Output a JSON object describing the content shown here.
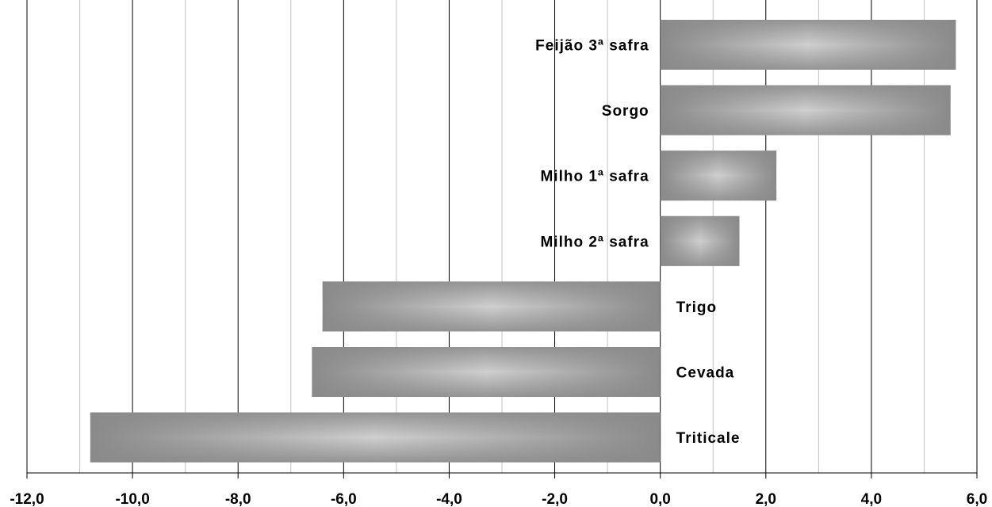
{
  "chart_data": {
    "type": "bar",
    "orientation": "horizontal",
    "categories": [
      "Feijão 3ª safra",
      "Sorgo",
      "Milho 1ª safra",
      "Milho 2ª safra",
      "Trigo",
      "Cevada",
      "Triticale"
    ],
    "values": [
      5.6,
      5.5,
      2.2,
      1.5,
      -6.4,
      -6.6,
      -10.8
    ],
    "xlim": [
      -12.0,
      6.0
    ],
    "xticks": [
      "-12,0",
      "-10,0",
      "-8,0",
      "-6,0",
      "-4,0",
      "-2,0",
      "0,0",
      "2,0",
      "4,0",
      "6,0"
    ],
    "xtick_values": [
      -12,
      -10,
      -8,
      -6,
      -4,
      -2,
      0,
      2,
      4,
      6
    ],
    "minor_grid_values": [
      -11,
      -9,
      -7,
      -5,
      -3,
      -1,
      1,
      3,
      5
    ],
    "title": "",
    "xlabel": "",
    "ylabel": "",
    "grid": true,
    "legend": "none"
  },
  "colors": {
    "bar_edge": "#8a8a8a",
    "bar_center": "#cfcfcf",
    "major_grid": "#000000",
    "minor_grid": "#c0c0c0"
  }
}
